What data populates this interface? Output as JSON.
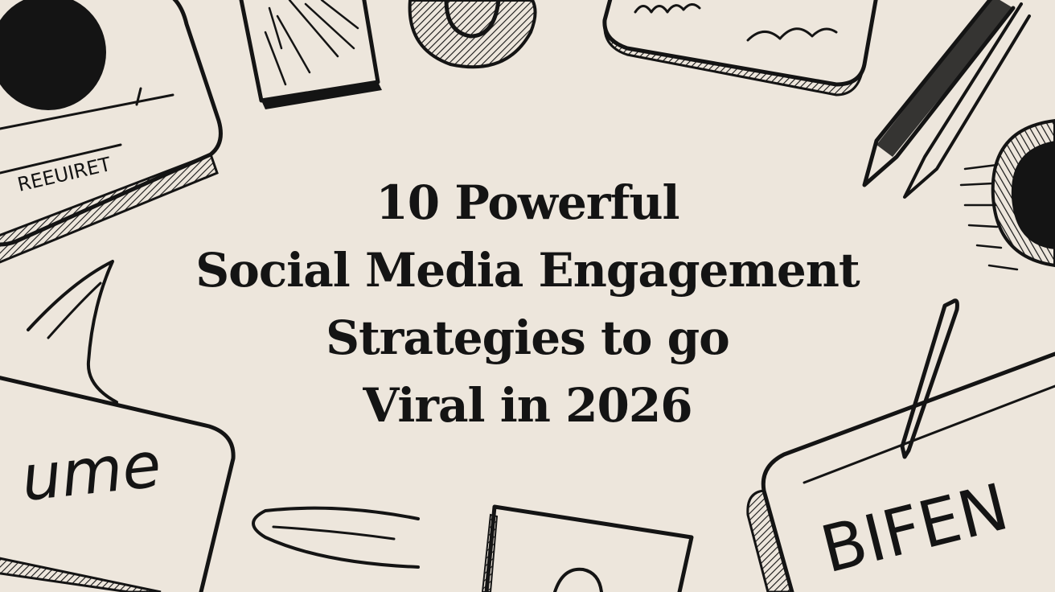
{
  "headline": {
    "lines": [
      "10 Powerful",
      "Social Media Engagement",
      "Strategies to go",
      "Viral in 2026"
    ]
  },
  "doodle_texts": {
    "top_left_card": "REEUIRET",
    "bottom_left_card": "ume",
    "bottom_right_card": "BIFEN"
  },
  "colors": {
    "background": "#ede6dc",
    "ink": "#141414"
  }
}
